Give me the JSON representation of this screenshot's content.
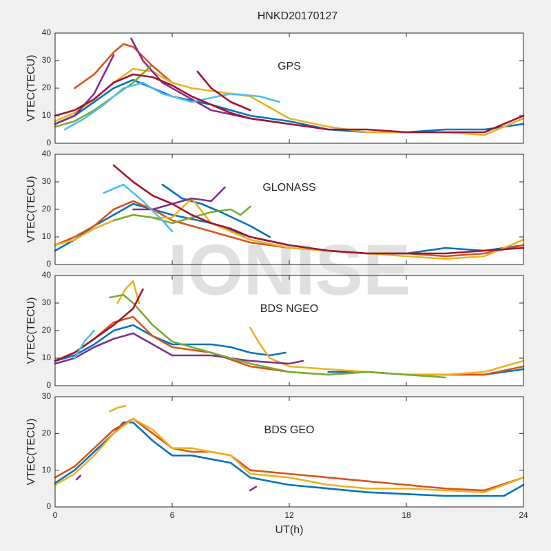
{
  "title": "HNKD20170127",
  "watermark": "IONISE",
  "chart_data": [
    {
      "type": "line",
      "annotation": "GPS",
      "ylabel": "VTEC(TECU)",
      "xlim": [
        0,
        24
      ],
      "xticks": [
        0,
        6,
        12,
        18,
        24
      ],
      "ylim": [
        0,
        40
      ],
      "yticks": [
        0,
        10,
        20,
        30,
        40
      ],
      "series": [
        {
          "color": "#0072BD",
          "x": [
            0,
            1,
            2,
            3,
            4,
            5,
            6,
            8,
            10,
            12,
            14,
            16,
            18,
            20,
            22,
            24
          ],
          "values": [
            7,
            10,
            15,
            20,
            23,
            20,
            17,
            14,
            10,
            8,
            5,
            4,
            4,
            5,
            5,
            7
          ]
        },
        {
          "color": "#D95319",
          "x": [
            1,
            2,
            3,
            3.5,
            4,
            5,
            6
          ],
          "values": [
            20,
            25,
            33,
            36,
            35,
            28,
            22
          ]
        },
        {
          "color": "#EDB120",
          "x": [
            0,
            1,
            2,
            3,
            4,
            5,
            6,
            7,
            8,
            9,
            10,
            12,
            14,
            16,
            18,
            20,
            22,
            24
          ],
          "values": [
            8,
            11,
            16,
            22,
            27,
            26,
            22,
            20,
            19,
            18,
            17,
            9,
            6,
            4,
            4,
            4,
            3,
            9
          ]
        },
        {
          "color": "#7E2F8E",
          "x": [
            0,
            1,
            2,
            3
          ],
          "values": [
            7,
            10,
            18,
            32
          ]
        },
        {
          "color": "#7E2F8E",
          "x": [
            3.9,
            4.5,
            5.5,
            7,
            8,
            10,
            12
          ],
          "values": [
            38,
            30,
            22,
            16,
            12,
            9,
            7
          ]
        },
        {
          "color": "#77AC30",
          "x": [
            0,
            1,
            2,
            3,
            4,
            4.9
          ],
          "values": [
            6,
            8,
            12,
            17,
            22,
            28
          ]
        },
        {
          "color": "#4DBEEE",
          "x": [
            0.5,
            1.5,
            2.5,
            3.5,
            4.5,
            5.5,
            7,
            9,
            10.5,
            11.5
          ],
          "values": [
            5,
            9,
            14,
            20,
            22,
            18,
            15,
            18,
            17,
            15
          ]
        },
        {
          "color": "#A2142F",
          "x": [
            0,
            1,
            2,
            3,
            4,
            5,
            6,
            7,
            8,
            9,
            10,
            11,
            12,
            14,
            16,
            18,
            20,
            22,
            24
          ],
          "values": [
            10,
            12,
            16,
            22,
            25,
            24,
            21,
            17,
            14,
            11,
            9,
            8,
            7,
            5,
            5,
            4,
            4,
            4,
            10
          ]
        },
        {
          "color": "#A2142F",
          "x": [
            7.3,
            8,
            9,
            10
          ],
          "values": [
            26,
            20,
            15,
            12
          ]
        }
      ]
    },
    {
      "type": "line",
      "annotation": "GLONASS",
      "ylabel": "VTEC(TECU)",
      "xlim": [
        0,
        24
      ],
      "xticks": [
        0,
        6,
        12,
        18,
        24
      ],
      "ylim": [
        0,
        40
      ],
      "yticks": [
        0,
        10,
        20,
        30,
        40
      ],
      "series": [
        {
          "color": "#0072BD",
          "x": [
            0,
            1,
            2,
            3,
            4,
            5,
            6,
            8,
            10,
            12,
            14,
            16,
            18,
            20,
            22,
            24
          ],
          "values": [
            5,
            9,
            14,
            18,
            22,
            20,
            18,
            15,
            10,
            7,
            5,
            4,
            4,
            6,
            5,
            7
          ]
        },
        {
          "color": "#0072BD",
          "x": [
            5.5,
            6.5,
            7.5,
            8.5,
            10,
            11
          ],
          "values": [
            29,
            24,
            22,
            19,
            14,
            10
          ]
        },
        {
          "color": "#D95319",
          "x": [
            0,
            1,
            2,
            3,
            4,
            5,
            6,
            7,
            8,
            10,
            12,
            14,
            16,
            18,
            20,
            22,
            24
          ],
          "values": [
            7,
            10,
            14,
            20,
            23,
            20,
            16,
            14,
            12,
            8,
            6,
            5,
            4,
            4,
            3,
            4,
            7
          ]
        },
        {
          "color": "#EDB120",
          "x": [
            0,
            1,
            2,
            3,
            4,
            5,
            6,
            7,
            8,
            10,
            12,
            14,
            16,
            18,
            20,
            22,
            24
          ],
          "values": [
            7,
            9,
            13,
            16,
            18,
            17,
            17,
            24,
            15,
            9,
            6,
            5,
            4,
            3,
            2,
            3,
            9
          ]
        },
        {
          "color": "#7E2F8E",
          "x": [
            4,
            5,
            6,
            7,
            8,
            8.7
          ],
          "values": [
            20,
            20,
            22,
            24,
            23,
            28
          ]
        },
        {
          "color": "#77AC30",
          "x": [
            3,
            4,
            5,
            6,
            7,
            8,
            9,
            9.5,
            10
          ],
          "values": [
            16,
            18,
            17,
            15,
            17,
            19,
            20,
            18,
            21
          ]
        },
        {
          "color": "#4DBEEE",
          "x": [
            2.5,
            3.5,
            4.5,
            5.5,
            6
          ],
          "values": [
            26,
            29,
            23,
            16,
            12
          ]
        },
        {
          "color": "#A2142F",
          "x": [
            3,
            4,
            5,
            6,
            7,
            8,
            9,
            10,
            12,
            14,
            16,
            18,
            20,
            22,
            24
          ],
          "values": [
            36,
            30,
            25,
            22,
            18,
            15,
            13,
            10,
            7,
            5,
            4,
            4,
            4,
            5,
            6
          ]
        }
      ]
    },
    {
      "type": "line",
      "annotation": "BDS NGEO",
      "ylabel": "VTEC(TECU)",
      "xlim": [
        0,
        24
      ],
      "xticks": [
        0,
        6,
        12,
        18,
        24
      ],
      "ylim": [
        0,
        40
      ],
      "yticks": [
        0,
        10,
        20,
        30,
        40
      ],
      "series": [
        {
          "color": "#0072BD",
          "x": [
            0,
            1,
            2,
            3,
            4,
            5,
            6,
            7,
            8,
            9,
            10,
            11,
            11.8
          ],
          "values": [
            9,
            11,
            15,
            20,
            22,
            18,
            15,
            15,
            15,
            14,
            12,
            11,
            12
          ]
        },
        {
          "color": "#0072BD",
          "x": [
            14,
            16,
            18,
            20,
            22,
            24
          ],
          "values": [
            5,
            5,
            4,
            4,
            4,
            6
          ]
        },
        {
          "color": "#D95319",
          "x": [
            0,
            1,
            2,
            3,
            4,
            5,
            6,
            8,
            10,
            12,
            14,
            16,
            18,
            20,
            22,
            24
          ],
          "values": [
            9,
            12,
            17,
            23,
            25,
            18,
            14,
            12,
            7,
            5,
            4,
            5,
            4,
            4,
            4,
            7
          ]
        },
        {
          "color": "#EDB120",
          "x": [
            3.2,
            3.6,
            4,
            4.3
          ],
          "values": [
            30,
            35,
            38,
            30
          ]
        },
        {
          "color": "#EDB120",
          "x": [
            10,
            10.5,
            11,
            12,
            14,
            16,
            18,
            20,
            22,
            24
          ],
          "values": [
            21,
            15,
            10,
            7,
            6,
            5,
            4,
            4,
            5,
            9
          ]
        },
        {
          "color": "#7E2F8E",
          "x": [
            0,
            1,
            2,
            3,
            4,
            5,
            6,
            8,
            10,
            12,
            12.7
          ],
          "values": [
            8,
            10,
            14,
            17,
            19,
            15,
            11,
            11,
            9,
            8,
            9
          ]
        },
        {
          "color": "#77AC30",
          "x": [
            2.8,
            3.5,
            4,
            5,
            6,
            7,
            8,
            10,
            12,
            14,
            16,
            18,
            20
          ],
          "values": [
            32,
            33,
            30,
            22,
            16,
            14,
            12,
            8,
            5,
            4,
            5,
            4,
            3
          ]
        },
        {
          "color": "#A2142F",
          "x": [
            0,
            1,
            2,
            3,
            4,
            4.5
          ],
          "values": [
            9,
            12,
            17,
            22,
            28,
            35
          ]
        },
        {
          "color": "#4DBEEE",
          "x": [
            1,
            1.5,
            2
          ],
          "values": [
            10,
            16,
            20
          ]
        }
      ]
    },
    {
      "type": "line",
      "annotation": "BDS GEO",
      "ylabel": "VTEC(TECU)",
      "xlabel": "UT(h)",
      "xlim": [
        0,
        24
      ],
      "xticks": [
        0,
        6,
        12,
        18,
        24
      ],
      "ylim": [
        0,
        30
      ],
      "yticks": [
        0,
        10,
        20,
        30
      ],
      "series": [
        {
          "color": "#0072BD",
          "x": [
            0,
            1,
            2,
            3,
            3.5,
            4,
            5,
            6,
            7,
            8,
            9,
            10,
            12,
            14,
            16,
            18,
            20,
            22,
            23,
            24
          ],
          "values": [
            6.5,
            10,
            15,
            20,
            23,
            23,
            18,
            14,
            14,
            13,
            12,
            8,
            6,
            5,
            4,
            3.5,
            3,
            3,
            3,
            6
          ]
        },
        {
          "color": "#D95319",
          "x": [
            0,
            1,
            2,
            3,
            4,
            5,
            6,
            7,
            8,
            9,
            10,
            12,
            14,
            16,
            18,
            20,
            22,
            24
          ],
          "values": [
            8,
            11,
            16,
            21,
            24,
            20,
            16,
            15,
            15,
            14,
            10,
            9,
            8,
            7,
            6,
            5,
            4.5,
            8
          ]
        },
        {
          "color": "#EDB120",
          "x": [
            0,
            1,
            2,
            3,
            4,
            5,
            6,
            7,
            8,
            9,
            10,
            12,
            14,
            16,
            18,
            20,
            22,
            24
          ],
          "values": [
            6,
            9,
            14,
            20,
            24,
            21,
            16,
            16,
            15,
            14,
            9,
            8,
            6,
            5,
            5,
            4.5,
            4,
            8
          ]
        },
        {
          "color": "#EDB120",
          "x": [
            2.8,
            3.2,
            3.6
          ],
          "values": [
            26,
            27,
            27.5
          ]
        },
        {
          "color": "#7E2F8E",
          "x": [
            1.1,
            1.3
          ],
          "values": [
            7.5,
            8.5
          ]
        },
        {
          "color": "#7E2F8E",
          "x": [
            10,
            10.3
          ],
          "values": [
            4.5,
            5.5
          ]
        }
      ]
    }
  ]
}
